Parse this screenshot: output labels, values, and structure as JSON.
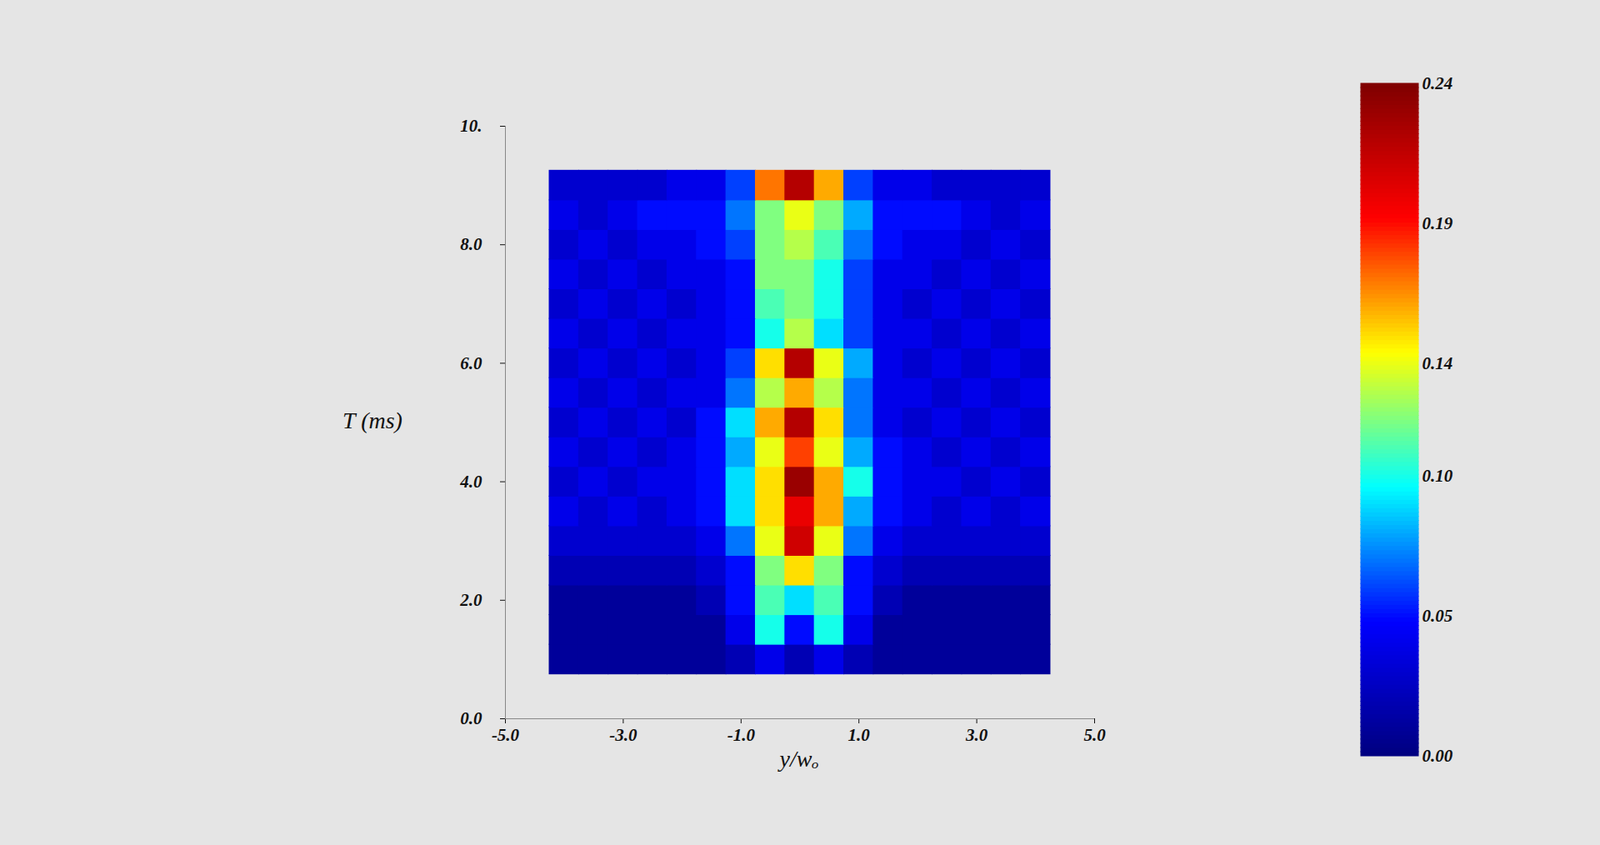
{
  "chart_data": {
    "type": "heatmap",
    "x_label": "y/wₒ",
    "y_label": "T (ms)",
    "xlim": [
      -5,
      5
    ],
    "xticks": [
      {
        "value": -5,
        "label": "-5.0"
      },
      {
        "value": -3,
        "label": "-3.0"
      },
      {
        "value": -1,
        "label": "-1.0"
      },
      {
        "value": 1,
        "label": "1.0"
      },
      {
        "value": 3,
        "label": "3.0"
      },
      {
        "value": 5,
        "label": "5.0"
      }
    ],
    "ylim": [
      0,
      10
    ],
    "yticks": [
      {
        "value": 0,
        "label": "0.0"
      },
      {
        "value": 2,
        "label": "2.0"
      },
      {
        "value": 4,
        "label": "4.0"
      },
      {
        "value": 6,
        "label": "6.0"
      },
      {
        "value": 8,
        "label": "8.0"
      },
      {
        "value": 10,
        "label": "10."
      }
    ],
    "x": [
      -4,
      -3.5,
      -3,
      -2.5,
      -2,
      -1.5,
      -1,
      -0.5,
      0,
      0.5,
      1,
      1.5,
      2,
      2.5,
      3,
      3.5,
      4
    ],
    "y": [
      1.0,
      1.5,
      2.0,
      2.5,
      3.0,
      3.5,
      4.0,
      4.5,
      5.0,
      5.5,
      6.0,
      6.5,
      7.0,
      7.5,
      8.0,
      8.5,
      9.0
    ],
    "values": [
      [
        0.01,
        0.01,
        0.01,
        0.01,
        0.01,
        0.01,
        0.02,
        0.04,
        0.02,
        0.04,
        0.02,
        0.01,
        0.01,
        0.01,
        0.01,
        0.01,
        0.01
      ],
      [
        0.01,
        0.01,
        0.01,
        0.01,
        0.01,
        0.01,
        0.04,
        0.1,
        0.05,
        0.1,
        0.04,
        0.01,
        0.01,
        0.01,
        0.01,
        0.01,
        0.01
      ],
      [
        0.01,
        0.01,
        0.01,
        0.01,
        0.01,
        0.02,
        0.05,
        0.11,
        0.09,
        0.11,
        0.05,
        0.02,
        0.01,
        0.01,
        0.01,
        0.01,
        0.01
      ],
      [
        0.02,
        0.02,
        0.02,
        0.02,
        0.02,
        0.03,
        0.05,
        0.12,
        0.15,
        0.12,
        0.05,
        0.03,
        0.02,
        0.02,
        0.02,
        0.02,
        0.02
      ],
      [
        0.03,
        0.03,
        0.03,
        0.03,
        0.03,
        0.04,
        0.07,
        0.14,
        0.21,
        0.14,
        0.07,
        0.04,
        0.03,
        0.03,
        0.03,
        0.03,
        0.03
      ],
      [
        0.04,
        0.03,
        0.04,
        0.03,
        0.04,
        0.05,
        0.09,
        0.15,
        0.2,
        0.16,
        0.08,
        0.05,
        0.04,
        0.03,
        0.04,
        0.03,
        0.04
      ],
      [
        0.03,
        0.04,
        0.03,
        0.04,
        0.04,
        0.05,
        0.09,
        0.15,
        0.23,
        0.16,
        0.1,
        0.05,
        0.04,
        0.04,
        0.03,
        0.04,
        0.03
      ],
      [
        0.04,
        0.03,
        0.04,
        0.03,
        0.04,
        0.05,
        0.08,
        0.14,
        0.18,
        0.14,
        0.08,
        0.05,
        0.04,
        0.03,
        0.04,
        0.03,
        0.04
      ],
      [
        0.03,
        0.04,
        0.03,
        0.04,
        0.03,
        0.05,
        0.09,
        0.16,
        0.22,
        0.15,
        0.07,
        0.04,
        0.03,
        0.04,
        0.03,
        0.04,
        0.03
      ],
      [
        0.04,
        0.03,
        0.04,
        0.03,
        0.04,
        0.04,
        0.07,
        0.13,
        0.16,
        0.13,
        0.07,
        0.04,
        0.04,
        0.03,
        0.04,
        0.03,
        0.04
      ],
      [
        0.03,
        0.04,
        0.03,
        0.04,
        0.03,
        0.04,
        0.06,
        0.15,
        0.22,
        0.14,
        0.08,
        0.04,
        0.03,
        0.04,
        0.03,
        0.04,
        0.03
      ],
      [
        0.04,
        0.03,
        0.04,
        0.03,
        0.04,
        0.04,
        0.05,
        0.1,
        0.13,
        0.09,
        0.06,
        0.04,
        0.04,
        0.03,
        0.04,
        0.03,
        0.04
      ],
      [
        0.03,
        0.04,
        0.03,
        0.04,
        0.03,
        0.04,
        0.05,
        0.11,
        0.12,
        0.1,
        0.06,
        0.04,
        0.03,
        0.04,
        0.03,
        0.04,
        0.03
      ],
      [
        0.04,
        0.03,
        0.04,
        0.03,
        0.04,
        0.04,
        0.05,
        0.12,
        0.12,
        0.1,
        0.06,
        0.04,
        0.04,
        0.03,
        0.04,
        0.03,
        0.04
      ],
      [
        0.03,
        0.04,
        0.03,
        0.04,
        0.04,
        0.05,
        0.06,
        0.12,
        0.13,
        0.11,
        0.07,
        0.05,
        0.04,
        0.04,
        0.03,
        0.04,
        0.03
      ],
      [
        0.04,
        0.03,
        0.04,
        0.05,
        0.05,
        0.05,
        0.07,
        0.12,
        0.14,
        0.12,
        0.08,
        0.05,
        0.05,
        0.05,
        0.04,
        0.03,
        0.04
      ],
      [
        0.03,
        0.03,
        0.03,
        0.03,
        0.04,
        0.04,
        0.06,
        0.17,
        0.22,
        0.16,
        0.06,
        0.04,
        0.04,
        0.03,
        0.03,
        0.03,
        0.03
      ]
    ],
    "colorbar": {
      "range": [
        0,
        0.24
      ],
      "ticks": [
        {
          "value": 0,
          "label": "0.00"
        },
        {
          "value": 0.05,
          "label": "0.05"
        },
        {
          "value": 0.1,
          "label": "0.10"
        },
        {
          "value": 0.14,
          "label": "0.14"
        },
        {
          "value": 0.19,
          "label": "0.19"
        },
        {
          "value": 0.24,
          "label": "0.24"
        }
      ]
    }
  }
}
